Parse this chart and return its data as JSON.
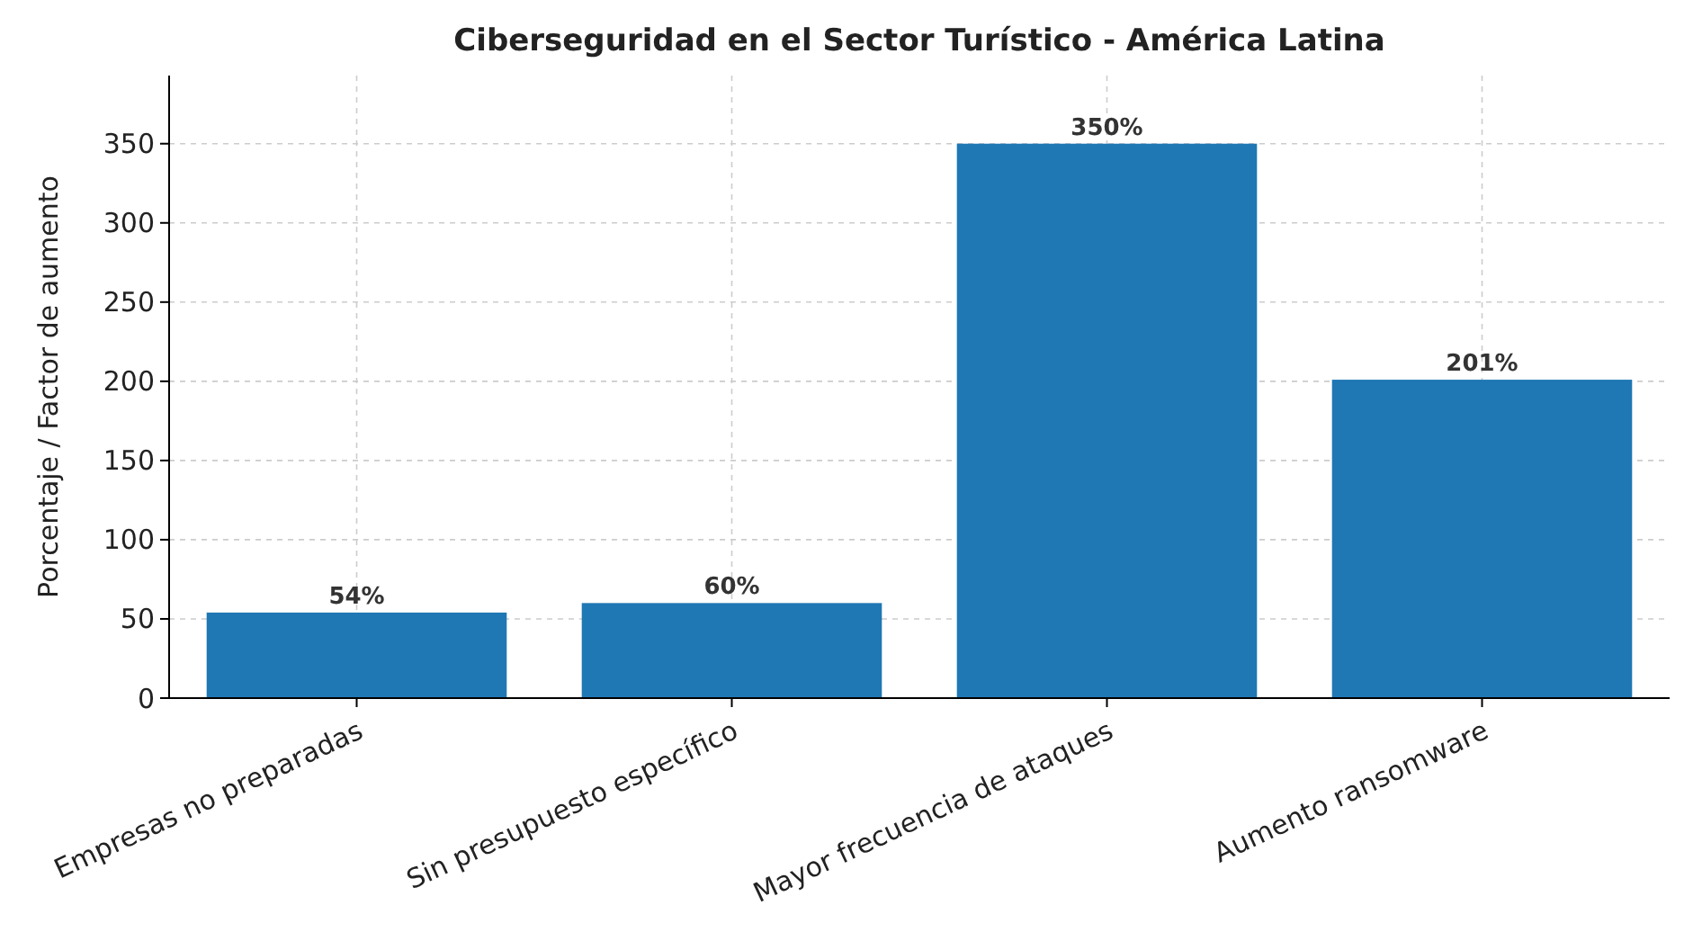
{
  "chart_data": {
    "type": "bar",
    "title": "Ciberseguridad en el Sector Turístico - América Latina",
    "ylabel": "Porcentaje / Factor de aumento",
    "categories": [
      "Empresas no preparadas",
      "Sin presupuesto específico",
      "Mayor frecuencia de ataques",
      "Aumento ransomware"
    ],
    "values": [
      54,
      60,
      350,
      201
    ],
    "value_labels": [
      "54%",
      "60%",
      "350%",
      "201%"
    ],
    "color": "#1f77b4",
    "ylim": [
      0,
      393
    ],
    "yticks": [
      0,
      50,
      100,
      150,
      200,
      250,
      300,
      350
    ],
    "grid": true
  }
}
